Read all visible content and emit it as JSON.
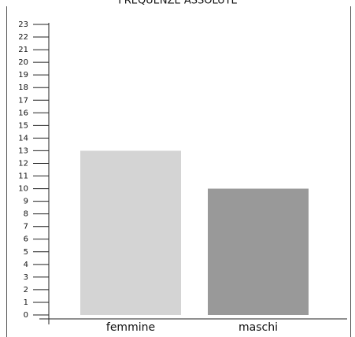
{
  "chart_data": {
    "type": "bar",
    "title": "FREQUENZE ASSOLUTE",
    "categories": [
      "femmine",
      "maschi"
    ],
    "values": [
      13,
      10
    ],
    "colors": [
      "#d4d4d4",
      "#999999"
    ],
    "ylim": [
      0,
      23
    ],
    "yticks": [
      0,
      1,
      2,
      3,
      4,
      5,
      6,
      7,
      8,
      9,
      10,
      11,
      12,
      13,
      14,
      15,
      16,
      17,
      18,
      19,
      20,
      21,
      22,
      23
    ],
    "grid": false
  }
}
